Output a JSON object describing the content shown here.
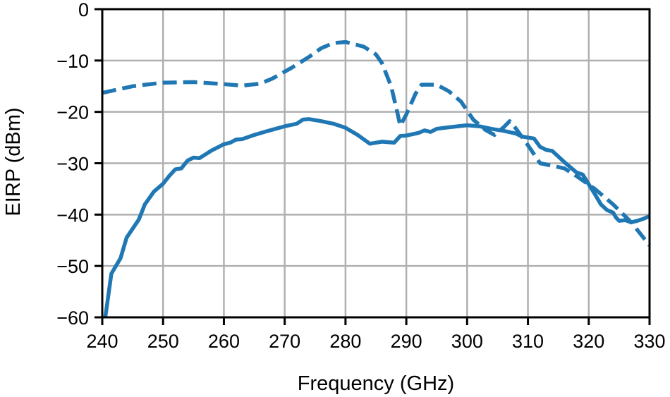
{
  "chart_data": {
    "type": "line",
    "title": "",
    "xlabel": "Frequency (GHz)",
    "ylabel": "EIRP (dBm)",
    "xlim": [
      240,
      330
    ],
    "ylim": [
      -60,
      0
    ],
    "xticks": [
      240,
      250,
      260,
      270,
      280,
      290,
      300,
      310,
      320,
      330
    ],
    "yticks": [
      0,
      -10,
      -20,
      -30,
      -40,
      -50,
      -60
    ],
    "xtick_labels": [
      "240",
      "250",
      "260",
      "270",
      "280",
      "290",
      "300",
      "310",
      "320",
      "330"
    ],
    "ytick_labels": [
      "0",
      "−10",
      "−20",
      "−30",
      "−40",
      "−50",
      "−60"
    ],
    "grid": true,
    "legend": null,
    "series": [
      {
        "name": "dashed",
        "style": "dashed",
        "color": "#1f77b4",
        "x": [
          240,
          245,
          250,
          255,
          260,
          263,
          266,
          268,
          271,
          274,
          276,
          278,
          280,
          283,
          285,
          286,
          287.5,
          288.5,
          289,
          290,
          291.5,
          292.5,
          295,
          297,
          299,
          301,
          303,
          304.5,
          306,
          307,
          308,
          310,
          312,
          314,
          316,
          318,
          321,
          324,
          327,
          329,
          330
        ],
        "y": [
          -16.3,
          -15.0,
          -14.3,
          -14.2,
          -14.6,
          -14.9,
          -14.5,
          -13.5,
          -11.5,
          -9.3,
          -7.6,
          -6.6,
          -6.4,
          -7.3,
          -8.8,
          -10.5,
          -15.0,
          -20.0,
          -22.7,
          -20.5,
          -16.5,
          -14.7,
          -14.7,
          -16.0,
          -18.0,
          -21.5,
          -23.5,
          -24.5,
          -23.0,
          -21.8,
          -23.2,
          -26.5,
          -30.0,
          -30.5,
          -31.0,
          -32.5,
          -35.0,
          -38.0,
          -41.5,
          -44.5,
          -46.0
        ]
      },
      {
        "name": "solid",
        "style": "solid",
        "color": "#1f77b4",
        "x": [
          240.5,
          241.5,
          243,
          244,
          246,
          247,
          248.5,
          250,
          251,
          252,
          253,
          254,
          255,
          256,
          258,
          260,
          261,
          262,
          263,
          265,
          267,
          270,
          272,
          273,
          274,
          276,
          278,
          280,
          282,
          284,
          286,
          288,
          289,
          290,
          292,
          293,
          294,
          295,
          297,
          300,
          302,
          304,
          306,
          308,
          309,
          310,
          311,
          312,
          313,
          314,
          316,
          318,
          319,
          321,
          322,
          323,
          324,
          324.5,
          325,
          326,
          327,
          328,
          329,
          330
        ],
        "y": [
          -60.0,
          -51.5,
          -48.5,
          -44.5,
          -41.0,
          -38.0,
          -35.5,
          -34.0,
          -32.5,
          -31.2,
          -31.0,
          -29.5,
          -28.9,
          -29.0,
          -27.5,
          -26.3,
          -26.0,
          -25.4,
          -25.3,
          -24.5,
          -23.8,
          -22.8,
          -22.3,
          -21.5,
          -21.4,
          -21.8,
          -22.3,
          -23.1,
          -24.5,
          -26.2,
          -25.8,
          -26.0,
          -24.7,
          -24.6,
          -24.1,
          -23.6,
          -23.9,
          -23.3,
          -23.0,
          -22.6,
          -22.8,
          -23.3,
          -23.7,
          -24.2,
          -24.8,
          -25.0,
          -25.2,
          -26.8,
          -27.4,
          -27.6,
          -29.8,
          -31.8,
          -32.2,
          -36.0,
          -38.0,
          -39.1,
          -39.6,
          -40.6,
          -41.2,
          -41.1,
          -41.5,
          -41.2,
          -40.8,
          -40.3
        ]
      }
    ]
  },
  "colors": {
    "line": "#1f77b4",
    "grid": "#b0b0b0",
    "axis": "#000000"
  }
}
